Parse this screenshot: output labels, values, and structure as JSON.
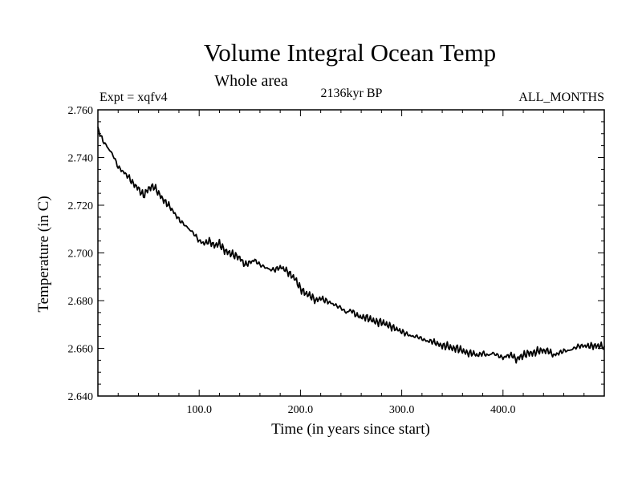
{
  "colors": {
    "background": "#ffffff",
    "ink": "#000000"
  },
  "chart_data": {
    "type": "line",
    "title": "Volume Integral Ocean Temp",
    "subtitle": "Whole area",
    "annotations": {
      "experiment": "Expt = xqfv4",
      "period": "2136kyr BP",
      "months": "ALL_MONTHS"
    },
    "xlabel": "Time (in years since start)",
    "ylabel": "Temperature (in C)",
    "xlim": [
      0,
      500
    ],
    "ylim": [
      2.64,
      2.76
    ],
    "x_ticks": [
      100,
      200,
      300,
      400
    ],
    "x_tick_labels": [
      "100.0",
      "200.0",
      "300.0",
      "400.0"
    ],
    "y_ticks": [
      2.64,
      2.66,
      2.68,
      2.7,
      2.72,
      2.74,
      2.76
    ],
    "y_tick_labels": [
      "2.640",
      "2.660",
      "2.680",
      "2.700",
      "2.720",
      "2.740",
      "2.760"
    ],
    "grid": false,
    "series": [
      {
        "name": "Volume integral ocean temperature",
        "x": [
          0,
          5,
          10,
          15,
          20,
          25,
          30,
          35,
          40,
          45,
          50,
          55,
          60,
          65,
          70,
          75,
          80,
          85,
          90,
          95,
          100,
          105,
          110,
          115,
          120,
          125,
          130,
          135,
          140,
          145,
          150,
          155,
          160,
          165,
          170,
          175,
          180,
          185,
          190,
          195,
          200,
          205,
          210,
          215,
          220,
          225,
          230,
          235,
          240,
          245,
          250,
          255,
          260,
          265,
          270,
          275,
          280,
          285,
          290,
          295,
          300,
          305,
          310,
          315,
          320,
          325,
          330,
          335,
          340,
          345,
          350,
          355,
          360,
          365,
          370,
          375,
          380,
          385,
          390,
          395,
          400,
          405,
          410,
          413,
          415,
          420,
          425,
          430,
          435,
          440,
          445,
          450,
          455,
          460,
          465,
          470,
          475,
          480,
          485,
          490,
          495,
          500
        ],
        "y": [
          2.752,
          2.747,
          2.744,
          2.741,
          2.736,
          2.734,
          2.732,
          2.729,
          2.727,
          2.724,
          2.727,
          2.728,
          2.725,
          2.722,
          2.72,
          2.717,
          2.714,
          2.712,
          2.71,
          2.708,
          2.705,
          2.704,
          2.705,
          2.703,
          2.704,
          2.701,
          2.7,
          2.699,
          2.698,
          2.695,
          2.696,
          2.697,
          2.695,
          2.694,
          2.693,
          2.693,
          2.694,
          2.693,
          2.691,
          2.689,
          2.685,
          2.683,
          2.682,
          2.68,
          2.681,
          2.68,
          2.679,
          2.678,
          2.677,
          2.675,
          2.676,
          2.674,
          2.673,
          2.673,
          2.672,
          2.671,
          2.671,
          2.67,
          2.669,
          2.668,
          2.667,
          2.666,
          2.665,
          2.665,
          2.664,
          2.663,
          2.663,
          2.662,
          2.661,
          2.661,
          2.66,
          2.66,
          2.659,
          2.658,
          2.658,
          2.657,
          2.658,
          2.657,
          2.658,
          2.657,
          2.656,
          2.657,
          2.657,
          2.655,
          2.656,
          2.657,
          2.658,
          2.658,
          2.659,
          2.659,
          2.659,
          2.657,
          2.658,
          2.659,
          2.659,
          2.66,
          2.661,
          2.661,
          2.661,
          2.661,
          2.661,
          2.661
        ]
      }
    ]
  }
}
